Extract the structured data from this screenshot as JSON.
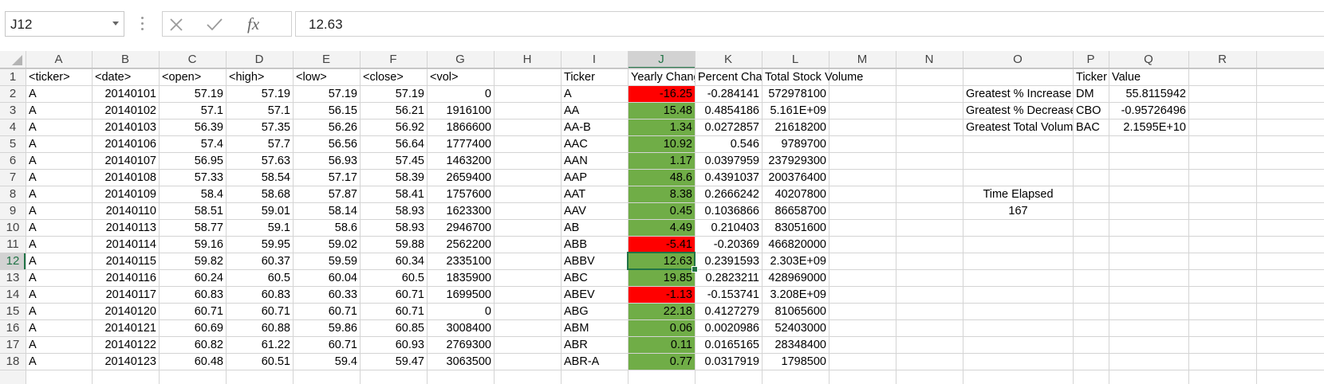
{
  "formula_bar": {
    "name_box": "J12",
    "cancel_icon": "x-icon",
    "enter_icon": "check-icon",
    "function_label": "fx",
    "formula_value": "12.63"
  },
  "columns": [
    "A",
    "B",
    "C",
    "D",
    "E",
    "F",
    "G",
    "H",
    "I",
    "J",
    "K",
    "L",
    "M",
    "N",
    "O",
    "P",
    "Q",
    "R"
  ],
  "rows": [
    "1",
    "2",
    "3",
    "4",
    "5",
    "6",
    "7",
    "8",
    "9",
    "10",
    "11",
    "12",
    "13",
    "14",
    "15",
    "16",
    "17",
    "18"
  ],
  "selected": {
    "col": "J",
    "row": "12"
  },
  "colors": {
    "positive": "#70ad47",
    "negative": "#ff0000",
    "selection": "#217346",
    "gridline": "#d4d4d4",
    "header_bg": "#f3f3f3"
  },
  "headers": {
    "A": "<ticker>",
    "B": "<date>",
    "C": "<open>",
    "D": "<high>",
    "E": "<low>",
    "F": "<close>",
    "G": "<vol>",
    "I": "Ticker",
    "J": "Yearly Change",
    "K": "Percent Change",
    "L": "Total Stock Volume",
    "P": "Ticker",
    "Q": "Value"
  },
  "raw_rows": [
    [
      "A",
      "20140101",
      "57.19",
      "57.19",
      "57.19",
      "57.19",
      "0"
    ],
    [
      "A",
      "20140102",
      "57.1",
      "57.1",
      "56.15",
      "56.21",
      "1916100"
    ],
    [
      "A",
      "20140103",
      "56.39",
      "57.35",
      "56.26",
      "56.92",
      "1866600"
    ],
    [
      "A",
      "20140106",
      "57.4",
      "57.7",
      "56.56",
      "56.64",
      "1777400"
    ],
    [
      "A",
      "20140107",
      "56.95",
      "57.63",
      "56.93",
      "57.45",
      "1463200"
    ],
    [
      "A",
      "20140108",
      "57.33",
      "58.54",
      "57.17",
      "58.39",
      "2659400"
    ],
    [
      "A",
      "20140109",
      "58.4",
      "58.68",
      "57.87",
      "58.41",
      "1757600"
    ],
    [
      "A",
      "20140110",
      "58.51",
      "59.01",
      "58.14",
      "58.93",
      "1623300"
    ],
    [
      "A",
      "20140113",
      "58.77",
      "59.1",
      "58.6",
      "58.93",
      "2946700"
    ],
    [
      "A",
      "20140114",
      "59.16",
      "59.95",
      "59.02",
      "59.88",
      "2562200"
    ],
    [
      "A",
      "20140115",
      "59.82",
      "60.37",
      "59.59",
      "60.34",
      "2335100"
    ],
    [
      "A",
      "20140116",
      "60.24",
      "60.5",
      "60.04",
      "60.5",
      "1835900"
    ],
    [
      "A",
      "20140117",
      "60.83",
      "60.83",
      "60.33",
      "60.71",
      "1699500"
    ],
    [
      "A",
      "20140120",
      "60.71",
      "60.71",
      "60.71",
      "60.71",
      "0"
    ],
    [
      "A",
      "20140121",
      "60.69",
      "60.88",
      "59.86",
      "60.85",
      "3008400"
    ],
    [
      "A",
      "20140122",
      "60.82",
      "61.22",
      "60.71",
      "60.93",
      "2769300"
    ],
    [
      "A",
      "20140123",
      "60.48",
      "60.51",
      "59.4",
      "59.47",
      "3063500"
    ]
  ],
  "summary_rows": [
    [
      "A",
      "-16.25",
      "-0.284141",
      "572978100"
    ],
    [
      "AA",
      "15.48",
      "0.4854186",
      "5.161E+09"
    ],
    [
      "AA-B",
      "1.34",
      "0.0272857",
      "21618200"
    ],
    [
      "AAC",
      "10.92",
      "0.546",
      "9789700"
    ],
    [
      "AAN",
      "1.17",
      "0.0397959",
      "237929300"
    ],
    [
      "AAP",
      "48.6",
      "0.4391037",
      "200376400"
    ],
    [
      "AAT",
      "8.38",
      "0.2666242",
      "40207800"
    ],
    [
      "AAV",
      "0.45",
      "0.1036866",
      "86658700"
    ],
    [
      "AB",
      "4.49",
      "0.210403",
      "83051600"
    ],
    [
      "ABB",
      "-5.41",
      "-0.20369",
      "466820000"
    ],
    [
      "ABBV",
      "12.63",
      "0.2391593",
      "2.303E+09"
    ],
    [
      "ABC",
      "19.85",
      "0.2823211",
      "428969000"
    ],
    [
      "ABEV",
      "-1.13",
      "-0.153741",
      "3.208E+09"
    ],
    [
      "ABG",
      "22.18",
      "0.4127279",
      "81065600"
    ],
    [
      "ABM",
      "0.06",
      "0.0020986",
      "52403000"
    ],
    [
      "ABR",
      "0.11",
      "0.0165165",
      "28348400"
    ],
    [
      "ABR-A",
      "0.77",
      "0.0317919",
      "1798500"
    ]
  ],
  "greatest": [
    [
      "Greatest % Increase",
      "DM",
      "55.8115942"
    ],
    [
      "Greatest % Decrease",
      "CBO",
      "-0.95726496"
    ],
    [
      "Greatest Total Volume",
      "BAC",
      "2.1595E+10"
    ]
  ],
  "time_elapsed": {
    "label": "Time Elapsed",
    "value": "167"
  }
}
